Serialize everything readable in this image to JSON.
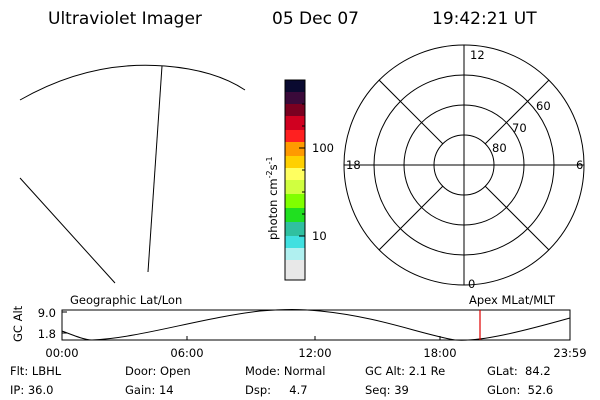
{
  "header": {
    "title": "Ultraviolet Imager",
    "date": "05 Dec 07",
    "time": "19:42:21 UT"
  },
  "colorbar": {
    "label": "photon cm",
    "exp1": "-2",
    "unit2": "s",
    "exp2": "-1",
    "ticks": [
      "100",
      "10"
    ]
  },
  "polar": {
    "mlt_labels": [
      "12",
      "0",
      "18",
      "6"
    ],
    "mlat_labels": [
      "60",
      "70",
      "80"
    ]
  },
  "orbit": {
    "left_title": "Geographic Lat/Lon",
    "right_title": "Apex MLat/MLT",
    "y_label": "GC Alt",
    "y_ticks": [
      "9.0",
      "1.8"
    ],
    "x_ticks": [
      "00:00",
      "06:00",
      "12:00",
      "18:00",
      "23:59"
    ]
  },
  "info": {
    "rows": [
      [
        "Flt: LBHL",
        "Door: Open",
        "Mode: Normal",
        "GC Alt: 2.1 Re",
        "GLat:  84.2"
      ],
      [
        "IP: 36.0",
        "Gain: 14",
        "Dsp:     4.7",
        "Seq: 39",
        "GLon:  52.6"
      ]
    ]
  }
}
